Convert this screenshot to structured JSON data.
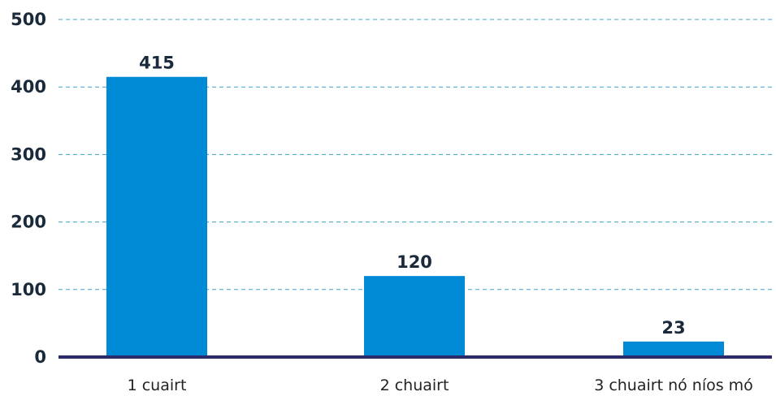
{
  "chart_data": {
    "type": "bar",
    "categories": [
      "1 cuairt",
      "2 chuairt",
      "3 chuairt nó níos mó"
    ],
    "values": [
      415,
      120,
      23
    ],
    "data_labels": [
      "415",
      "120",
      "23"
    ],
    "title": "",
    "xlabel": "",
    "ylabel": "",
    "ylim": [
      0,
      500
    ],
    "yticks": [
      0,
      100,
      200,
      300,
      400,
      500
    ],
    "ytick_labels": [
      "0",
      "100",
      "200",
      "300",
      "400",
      "500"
    ],
    "grid": "horizontal-dashed",
    "legend": "none",
    "colors": {
      "bar": "#0089d5",
      "text": "#1a2a3a",
      "gridline": "#3fa0c8",
      "axis": "#2b2a6b"
    }
  }
}
